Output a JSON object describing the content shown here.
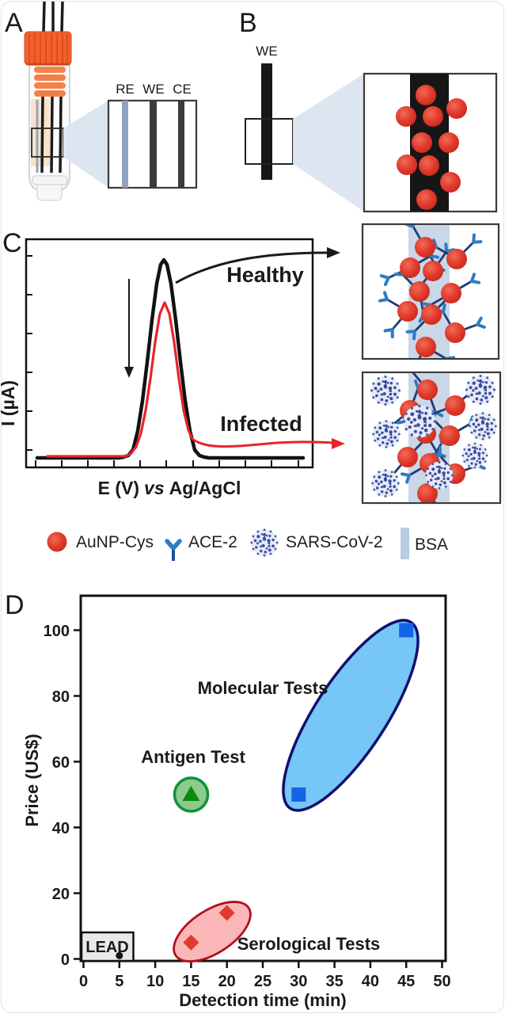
{
  "panels": {
    "a": {
      "label": "A",
      "electrode_labels": {
        "re": "RE",
        "we": "WE",
        "ce": "CE"
      }
    },
    "b": {
      "label": "B",
      "electrode_label": "WE"
    },
    "c": {
      "label": "C"
    },
    "d": {
      "label": "D"
    }
  },
  "legend": {
    "items": [
      {
        "icon": "aunp-icon",
        "label": "AuNP-Cys"
      },
      {
        "icon": "ace2-icon",
        "label": "ACE-2"
      },
      {
        "icon": "virus-icon",
        "label": "SARS-CoV-2"
      },
      {
        "icon": "bsa-icon",
        "label": "BSA"
      }
    ]
  },
  "chart_data": [
    {
      "panel": "C",
      "type": "line",
      "title": "",
      "xlabel": "E (V) vs Ag/AgCl",
      "xlabel_parts": [
        "E (V)",
        "vs",
        "Ag/AgCl"
      ],
      "ylabel": "I (µA)",
      "axis_numbers_shown": false,
      "series": [
        {
          "name": "Healthy",
          "color": "#121212",
          "shape": "gaussian_peak",
          "relative_peak_height": 1.0,
          "peak_position_relative": 0.48,
          "fwhm_relative": 0.13
        },
        {
          "name": "Infected",
          "color": "#E8232B",
          "shape": "gaussian_peak",
          "relative_peak_height": 0.72,
          "peak_position_relative": 0.48,
          "fwhm_relative": 0.11
        }
      ],
      "annotations": [
        "downward arrow indicating peak-current decrease",
        "black arrow to healthy electrode scheme",
        "red arrow to infected electrode scheme"
      ]
    },
    {
      "panel": "D",
      "type": "scatter",
      "xlabel": "Detection time (min)",
      "ylabel": "Price (US$)",
      "xlim": [
        0,
        50
      ],
      "ylim": [
        0,
        110
      ],
      "xticks": [
        0,
        5,
        10,
        15,
        20,
        25,
        30,
        35,
        40,
        45,
        50
      ],
      "yticks": [
        0,
        20,
        40,
        60,
        80,
        100
      ],
      "grid": false,
      "series": [
        {
          "name": "Molecular Tests",
          "marker": "square",
          "marker_color": "#1464E8",
          "label_color": "#1B1B8E",
          "ellipse_fill": "#76C6F8",
          "ellipse_stroke": "#10106E",
          "points": [
            [
              30,
              50
            ],
            [
              45,
              100
            ]
          ]
        },
        {
          "name": "Antigen Test",
          "marker": "triangle",
          "marker_color": "#0A8A0A",
          "label_color": "#149414",
          "circle_fill": "#8CCB8C",
          "circle_stroke": "#12913A",
          "points": [
            [
              15,
              50
            ]
          ]
        },
        {
          "name": "Serological Tests",
          "marker": "diamond",
          "marker_color": "#DF3B2D",
          "label_color": "#A8101A",
          "ellipse_fill": "#FBB7B7",
          "ellipse_stroke": "#B01020",
          "points": [
            [
              15,
              5
            ],
            [
              20,
              14
            ]
          ]
        },
        {
          "name": "LEAD",
          "marker": "dot",
          "marker_color": "#111111",
          "label_color": "#111111",
          "box_fill": "#E9E9E9",
          "points": [
            [
              5,
              1
            ]
          ]
        }
      ]
    }
  ],
  "colors": {
    "aunp": "#E23A2B",
    "ace2_stalk": "#1F3C78",
    "ace2_fork": "#2E7CC2",
    "virus": "#3B4EA3",
    "bsa_band": "#C9D7E7",
    "electrode_black": "#161616",
    "re_stripe": "#8FA3C0",
    "cap_orange": "#F2602E",
    "healthy_curve": "#121212",
    "infected_curve": "#E8232B"
  }
}
